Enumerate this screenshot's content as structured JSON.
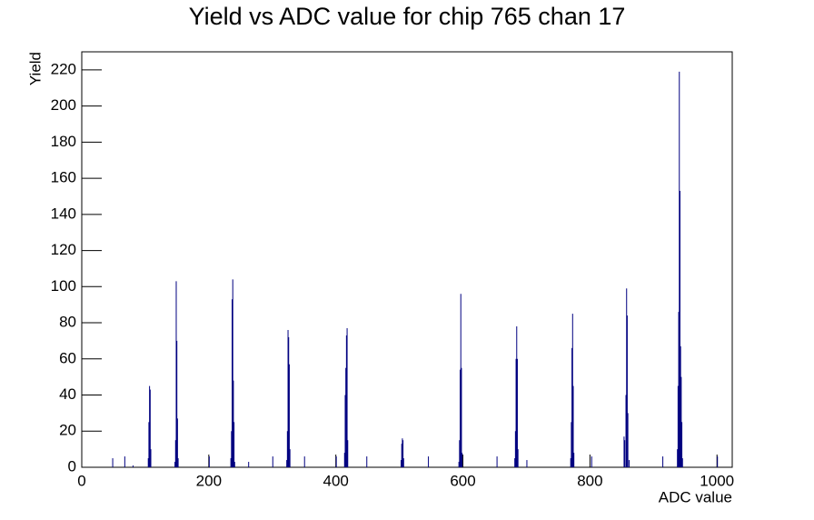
{
  "chart_data": {
    "type": "bar",
    "title": "Yield vs ADC value for chip 765 chan 17",
    "x_label": "ADC value",
    "y_label": "Yield",
    "color": "#000080",
    "x": [
      48,
      67,
      80,
      104,
      105,
      106,
      107,
      108,
      146,
      147,
      148,
      149,
      150,
      151,
      200,
      234,
      235,
      236,
      237,
      238,
      239,
      240,
      262,
      300,
      322,
      323,
      324,
      325,
      326,
      327,
      350,
      400,
      413,
      414,
      415,
      416,
      417,
      418,
      448,
      502,
      503,
      504,
      505,
      506,
      545,
      593,
      594,
      595,
      596,
      597,
      598,
      653,
      681,
      682,
      683,
      684,
      685,
      686,
      700,
      769,
      770,
      771,
      772,
      773,
      774,
      802,
      853,
      854,
      856,
      857,
      858,
      859,
      861,
      914,
      937,
      938,
      939,
      940,
      941,
      942,
      943,
      944,
      945,
      1000
    ],
    "values": [
      5,
      6,
      1,
      5,
      25,
      45,
      43,
      10,
      3,
      15,
      103,
      70,
      27,
      5,
      6,
      5,
      20,
      93,
      104,
      48,
      25,
      3,
      3,
      6,
      4,
      20,
      76,
      72,
      57,
      10,
      6,
      6,
      8,
      40,
      55,
      73,
      77,
      15,
      6,
      4,
      13,
      16,
      15,
      5,
      6,
      3,
      15,
      54,
      96,
      55,
      8,
      6,
      5,
      20,
      60,
      78,
      60,
      10,
      4,
      5,
      25,
      66,
      85,
      45,
      8,
      6,
      17,
      15,
      40,
      99,
      84,
      30,
      4,
      6,
      10,
      45,
      86,
      219,
      153,
      67,
      50,
      25,
      5,
      6
    ],
    "xlim": [
      0,
      1024
    ],
    "ylim": [
      0,
      230
    ],
    "xticks": [
      0,
      200,
      400,
      600,
      800,
      1000
    ],
    "yticks": [
      0,
      20,
      40,
      60,
      80,
      100,
      120,
      140,
      160,
      180,
      200,
      220
    ]
  }
}
